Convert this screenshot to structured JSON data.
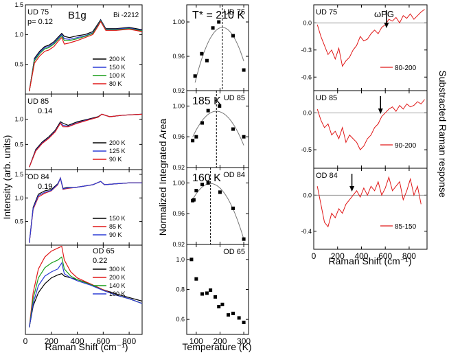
{
  "figure": {
    "col1_ylabel": "Intensity (arb. units)",
    "col1_xlabel": "Raman Shift (cm⁻¹)",
    "col2_ylabel": "Normalized Integrated Area",
    "col2_xlabel": "Temperature (K)",
    "col3_ylabel": "Substracted Raman response",
    "col3_xlabel": "Raman Shift (cm⁻¹)"
  },
  "chart_data": [
    {
      "type": "line",
      "id": "a1",
      "sample": "UD 75",
      "doping": "p= 0.12",
      "symmetry": "B1g",
      "material": "Bi -2212",
      "xlim": [
        0,
        900
      ],
      "ylim": [
        0,
        1.5
      ],
      "xticks": [
        0,
        200,
        400,
        600,
        800
      ],
      "yticks": [
        0.5,
        1.0,
        1.5
      ],
      "ytick_labels": [
        "0.5",
        "1.0",
        "1.5"
      ],
      "series": [
        {
          "name": "200 K",
          "color": "#000000",
          "x": [
            30,
            70,
            110,
            150,
            180,
            220,
            250,
            280,
            300,
            340,
            400,
            460,
            520,
            560,
            580,
            620,
            700,
            800,
            900
          ],
          "y": [
            0.05,
            0.6,
            0.72,
            0.8,
            0.82,
            0.88,
            0.95,
            1.02,
            0.97,
            0.95,
            0.98,
            1.0,
            1.05,
            1.18,
            1.25,
            1.1,
            1.1,
            1.12,
            1.08
          ]
        },
        {
          "name": "150 K",
          "color": "#2c3cd6",
          "x": [
            30,
            70,
            110,
            150,
            180,
            220,
            250,
            280,
            300,
            340,
            400,
            460,
            520,
            560,
            580,
            620,
            700,
            800,
            900
          ],
          "y": [
            0.05,
            0.58,
            0.7,
            0.78,
            0.8,
            0.86,
            0.93,
            1.0,
            0.93,
            0.92,
            0.95,
            0.98,
            1.03,
            1.16,
            1.24,
            1.09,
            1.09,
            1.11,
            1.07
          ]
        },
        {
          "name": "100 K",
          "color": "#1a9e1a",
          "x": [
            30,
            70,
            110,
            150,
            180,
            220,
            250,
            280,
            300,
            340,
            400,
            460,
            520,
            560,
            580,
            620,
            700,
            800,
            900
          ],
          "y": [
            0.05,
            0.56,
            0.68,
            0.76,
            0.78,
            0.84,
            0.91,
            0.98,
            0.9,
            0.9,
            0.93,
            0.97,
            1.02,
            1.15,
            1.23,
            1.08,
            1.08,
            1.1,
            1.06
          ]
        },
        {
          "name": "80 K",
          "color": "#e01818",
          "x": [
            30,
            70,
            110,
            150,
            180,
            220,
            250,
            280,
            300,
            340,
            400,
            460,
            520,
            560,
            580,
            620,
            700,
            800,
            900
          ],
          "y": [
            0.05,
            0.52,
            0.64,
            0.72,
            0.74,
            0.8,
            0.88,
            0.95,
            0.84,
            0.86,
            0.9,
            0.95,
            1.0,
            1.14,
            1.22,
            1.07,
            1.07,
            1.09,
            1.05
          ]
        }
      ]
    },
    {
      "type": "line",
      "id": "a2",
      "sample": "UD 85",
      "doping": "0.14",
      "xlim": [
        0,
        900
      ],
      "ylim": [
        0,
        1.5
      ],
      "xticks": [
        0,
        200,
        400,
        600,
        800
      ],
      "yticks": [
        0.5,
        1.0
      ],
      "ytick_labels": [
        "0.5",
        "1.0"
      ],
      "series": [
        {
          "name": "200 K",
          "color": "#000000",
          "x": [
            30,
            80,
            130,
            180,
            230,
            270,
            290,
            330,
            400,
            480,
            560,
            590,
            650,
            750,
            900
          ],
          "y": [
            0.05,
            0.4,
            0.55,
            0.65,
            0.78,
            0.95,
            0.92,
            0.88,
            0.95,
            1.0,
            1.05,
            1.1,
            1.05,
            1.08,
            1.1
          ]
        },
        {
          "name": "125 K",
          "color": "#2c3cd6",
          "x": [
            30,
            80,
            130,
            180,
            230,
            270,
            290,
            330,
            400,
            480,
            560,
            590,
            650,
            750,
            900
          ],
          "y": [
            0.05,
            0.38,
            0.53,
            0.63,
            0.76,
            0.93,
            0.88,
            0.86,
            0.93,
            0.99,
            1.04,
            1.1,
            1.05,
            1.08,
            1.1
          ]
        },
        {
          "name": "90 K",
          "color": "#e01818",
          "x": [
            30,
            80,
            130,
            180,
            230,
            270,
            290,
            330,
            400,
            480,
            560,
            590,
            650,
            750,
            900
          ],
          "y": [
            0.05,
            0.37,
            0.52,
            0.62,
            0.75,
            0.92,
            0.85,
            0.85,
            0.92,
            0.98,
            1.04,
            1.1,
            1.05,
            1.08,
            1.1
          ]
        }
      ]
    },
    {
      "type": "line",
      "id": "a3",
      "sample": "OD 84",
      "doping": "0.19",
      "xlim": [
        0,
        900
      ],
      "ylim": [
        0,
        1.6
      ],
      "xticks": [
        0,
        200,
        400,
        600,
        800
      ],
      "yticks": [
        0.5,
        1.0,
        1.5
      ],
      "ytick_labels": [
        "0.5",
        "1.0",
        "1.5"
      ],
      "series": [
        {
          "name": "150 K",
          "color": "#000000",
          "x": [
            30,
            60,
            100,
            150,
            200,
            250,
            270,
            290,
            320,
            380,
            450,
            520,
            580,
            610,
            700,
            800,
            900
          ],
          "y": [
            0.05,
            0.8,
            1.08,
            1.15,
            1.18,
            1.3,
            1.42,
            1.2,
            1.22,
            1.22,
            1.25,
            1.28,
            1.35,
            1.28,
            1.3,
            1.32,
            1.32
          ]
        },
        {
          "name": "85 K",
          "color": "#e01818",
          "x": [
            30,
            60,
            100,
            150,
            200,
            250,
            270,
            290,
            320,
            380,
            450,
            520,
            580,
            610,
            700,
            800,
            900
          ],
          "y": [
            0.05,
            0.76,
            1.02,
            1.1,
            1.15,
            1.28,
            1.42,
            1.18,
            1.2,
            1.22,
            1.25,
            1.28,
            1.35,
            1.28,
            1.3,
            1.32,
            1.32
          ]
        },
        {
          "name": "90 K",
          "color": "#2c3cd6",
          "x": [
            30,
            60,
            100,
            150,
            200,
            250,
            270,
            290,
            320,
            380,
            450,
            520,
            580,
            610,
            700,
            800,
            900
          ],
          "y": [
            0.05,
            0.78,
            1.05,
            1.12,
            1.16,
            1.29,
            1.42,
            1.19,
            1.21,
            1.22,
            1.25,
            1.28,
            1.35,
            1.28,
            1.3,
            1.32,
            1.32
          ]
        }
      ]
    },
    {
      "type": "line",
      "id": "a4",
      "sample": "OD 65",
      "doping": "0.22",
      "xlim": [
        0,
        900
      ],
      "ylim": [
        0,
        1.5
      ],
      "xticks": [
        0,
        200,
        400,
        600,
        800
      ],
      "yticks": [],
      "ytick_labels": [],
      "series": [
        {
          "name": "300 K",
          "color": "#000000",
          "x": [
            30,
            60,
            100,
            150,
            200,
            250,
            280,
            300,
            350,
            400,
            500,
            600,
            700,
            800,
            900
          ],
          "y": [
            0.12,
            0.48,
            0.7,
            0.85,
            0.95,
            1.0,
            1.02,
            0.98,
            0.95,
            0.92,
            0.85,
            0.75,
            0.68,
            0.62,
            0.56
          ]
        },
        {
          "name": "200 K",
          "color": "#e01818",
          "x": [
            30,
            60,
            100,
            150,
            200,
            250,
            280,
            300,
            350,
            400,
            500,
            600,
            700,
            800,
            900
          ],
          "y": [
            0.12,
            0.7,
            1.1,
            1.3,
            1.4,
            1.45,
            1.48,
            1.25,
            1.05,
            0.95,
            0.85,
            0.75,
            0.66,
            0.6,
            0.52
          ]
        },
        {
          "name": "140 K",
          "color": "#1a9e1a",
          "x": [
            30,
            60,
            100,
            150,
            200,
            250,
            280,
            300,
            350,
            400,
            500,
            600,
            700,
            800,
            900
          ],
          "y": [
            0.12,
            0.6,
            0.95,
            1.12,
            1.2,
            1.25,
            1.3,
            1.1,
            0.98,
            0.92,
            0.84,
            0.74,
            0.66,
            0.6,
            0.52
          ]
        },
        {
          "name": "100 K",
          "color": "#2c3cd6",
          "x": [
            30,
            60,
            100,
            150,
            200,
            250,
            280,
            300,
            350,
            400,
            500,
            600,
            700,
            800,
            900
          ],
          "y": [
            0.12,
            0.52,
            0.82,
            0.98,
            1.05,
            1.1,
            1.2,
            1.02,
            0.95,
            0.9,
            0.83,
            0.74,
            0.66,
            0.6,
            0.52
          ]
        }
      ]
    },
    {
      "type": "scatter",
      "id": "b1",
      "sample": "UD 75",
      "annotation": "T* = 210 K",
      "tstar": 210,
      "xlim": [
        60,
        320
      ],
      "ylim": [
        0.92,
        1.02
      ],
      "xticks": [
        100,
        200,
        300
      ],
      "yticks": [
        0.92,
        0.96,
        1.0
      ],
      "ytick_labels": [
        "0.92",
        "0.96",
        "1.00"
      ],
      "x": [
        95,
        123,
        145,
        170,
        195,
        255,
        300
      ],
      "y": [
        0.937,
        0.963,
        0.955,
        0.993,
        1.0,
        0.984,
        0.944
      ]
    },
    {
      "type": "scatter",
      "id": "b2",
      "sample": "UD 85",
      "annotation": "185 K",
      "tstar": 185,
      "xlim": [
        60,
        320
      ],
      "ylim": [
        0.92,
        1.02
      ],
      "xticks": [
        100,
        200,
        300
      ],
      "yticks": [
        0.92,
        0.96,
        1.0
      ],
      "ytick_labels": [
        "0.92",
        "0.96",
        "1.00"
      ],
      "x": [
        85,
        100,
        125,
        150,
        198,
        255,
        300
      ],
      "y": [
        0.955,
        0.96,
        0.978,
        0.994,
        1.0,
        0.97,
        0.96
      ]
    },
    {
      "type": "scatter",
      "id": "b3",
      "sample": "OD 84",
      "annotation": "160 K",
      "tstar": 160,
      "xlim": [
        60,
        320
      ],
      "ylim": [
        0.92,
        1.02
      ],
      "xticks": [
        100,
        200,
        300
      ],
      "yticks": [
        0.92,
        0.96,
        1.0
      ],
      "ytick_labels": [
        "0.92",
        "0.96",
        "1.00"
      ],
      "x": [
        85,
        90,
        100,
        125,
        150,
        200,
        255,
        300
      ],
      "y": [
        0.977,
        0.978,
        0.99,
        0.998,
        1.0,
        0.988,
        0.967,
        0.927
      ]
    },
    {
      "type": "scatter",
      "id": "b4",
      "sample": "OD 65",
      "xlim": [
        60,
        320
      ],
      "ylim": [
        0.5,
        1.1
      ],
      "xticks": [
        100,
        200,
        300
      ],
      "yticks": [
        0.6,
        0.8,
        1.0
      ],
      "ytick_labels": [
        "0.6",
        "0.8",
        "1.0"
      ],
      "x": [
        80,
        100,
        125,
        145,
        160,
        180,
        195,
        210,
        235,
        255,
        280,
        300
      ],
      "y": [
        1.0,
        0.87,
        0.77,
        0.775,
        0.795,
        0.75,
        0.685,
        0.7,
        0.63,
        0.64,
        0.61,
        0.58
      ]
    },
    {
      "type": "line",
      "id": "c1",
      "sample": "UD 75",
      "annotation": "ωPG",
      "arrow_x": 610,
      "legend": "80-200",
      "color": "#e01818",
      "xlim": [
        0,
        950
      ],
      "ylim": [
        -0.75,
        0.2
      ],
      "xticks": [
        0,
        200,
        400,
        600,
        800
      ],
      "yticks": [
        -0.6,
        -0.3,
        0.0
      ],
      "ytick_labels": [
        "-0.6",
        "-0.3",
        "0.0"
      ],
      "x": [
        30,
        60,
        90,
        120,
        150,
        180,
        210,
        240,
        270,
        300,
        330,
        360,
        390,
        420,
        450,
        480,
        510,
        540,
        570,
        600,
        630,
        660,
        690,
        720,
        750,
        780,
        810,
        840,
        870,
        900,
        930
      ],
      "y": [
        -0.02,
        -0.15,
        -0.25,
        -0.35,
        -0.3,
        -0.4,
        -0.28,
        -0.48,
        -0.42,
        -0.38,
        -0.3,
        -0.25,
        -0.15,
        -0.2,
        -0.18,
        -0.12,
        -0.08,
        -0.12,
        -0.05,
        -0.02,
        0.04,
        0.02,
        0.06,
        0.0,
        0.08,
        0.05,
        0.1,
        0.04,
        0.08,
        0.12,
        0.15
      ]
    },
    {
      "type": "line",
      "id": "c2",
      "sample": "UD 85",
      "arrow_x": 560,
      "legend": "90-200",
      "color": "#e01818",
      "xlim": [
        0,
        950
      ],
      "ylim": [
        -0.75,
        0.3
      ],
      "xticks": [
        0,
        200,
        400,
        600,
        800
      ],
      "yticks": [
        -0.5,
        0.0
      ],
      "ytick_labels": [
        "-0.5",
        "0.0"
      ],
      "x": [
        30,
        60,
        90,
        120,
        150,
        180,
        210,
        240,
        270,
        300,
        330,
        360,
        390,
        420,
        450,
        480,
        510,
        540,
        570,
        600,
        630,
        660,
        690,
        720,
        750,
        780,
        810,
        840,
        870,
        900,
        930
      ],
      "y": [
        0.05,
        -0.1,
        -0.2,
        -0.15,
        -0.3,
        -0.25,
        -0.35,
        -0.2,
        -0.4,
        -0.3,
        -0.35,
        -0.4,
        -0.5,
        -0.45,
        -0.35,
        -0.3,
        -0.2,
        -0.15,
        -0.05,
        0.0,
        0.05,
        0.08,
        0.02,
        0.1,
        0.05,
        0.12,
        0.08,
        0.1,
        0.15,
        0.12,
        0.18
      ]
    },
    {
      "type": "line",
      "id": "c3",
      "sample": "OD 84",
      "arrow_x": 320,
      "legend": "85-150",
      "color": "#e01818",
      "xlim": [
        0,
        950
      ],
      "ylim": [
        -0.6,
        0.3
      ],
      "xticks": [
        0,
        200,
        400,
        600,
        800
      ],
      "yticks": [
        -0.4,
        0.0
      ],
      "ytick_labels": [
        "-0.4",
        "0.0"
      ],
      "x": [
        30,
        60,
        90,
        120,
        150,
        180,
        210,
        240,
        270,
        300,
        330,
        360,
        390,
        420,
        450,
        480,
        510,
        540,
        570,
        600,
        630,
        660,
        690,
        720,
        750,
        780,
        810,
        840,
        870,
        900
      ],
      "y": [
        0.1,
        -0.1,
        -0.3,
        -0.35,
        -0.2,
        -0.25,
        -0.15,
        -0.2,
        -0.1,
        -0.05,
        0.0,
        0.05,
        -0.02,
        0.08,
        0.0,
        0.1,
        0.05,
        0.15,
        0.0,
        0.08,
        0.2,
        0.05,
        0.1,
        0.15,
        -0.05,
        0.05,
        0.18,
        0.0,
        0.1,
        -0.1
      ]
    }
  ]
}
